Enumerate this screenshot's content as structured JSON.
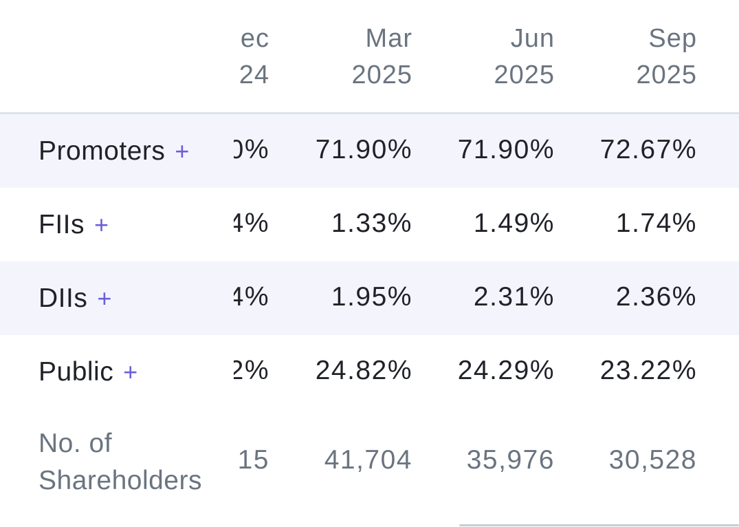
{
  "columns": [
    {
      "month": "ec",
      "year": "24"
    },
    {
      "month": "Mar",
      "year": "2025"
    },
    {
      "month": "Jun",
      "year": "2025"
    },
    {
      "month": "Sep",
      "year": "2025"
    }
  ],
  "rows": [
    {
      "label": "Promoters",
      "expand": "+",
      "values": [
        "0%",
        "71.90%",
        "71.90%",
        "72.67%"
      ]
    },
    {
      "label": "FIIs",
      "expand": "+",
      "values": [
        "4%",
        "1.33%",
        "1.49%",
        "1.74%"
      ]
    },
    {
      "label": "DIIs",
      "expand": "+",
      "values": [
        "4%",
        "1.95%",
        "2.31%",
        "2.36%"
      ]
    },
    {
      "label": "Public",
      "expand": "+",
      "values": [
        "2%",
        "24.82%",
        "24.29%",
        "23.22%"
      ]
    }
  ],
  "shareholders": {
    "label_line1": "No. of",
    "label_line2": "Shareholders",
    "values": [
      "15",
      "41,704",
      "35,976",
      "30,528"
    ]
  },
  "colors": {
    "accent": "#6a5fdc",
    "shaded_row": "#f4f5fc",
    "muted_text": "#6a7480",
    "divider": "#dde3ea"
  }
}
